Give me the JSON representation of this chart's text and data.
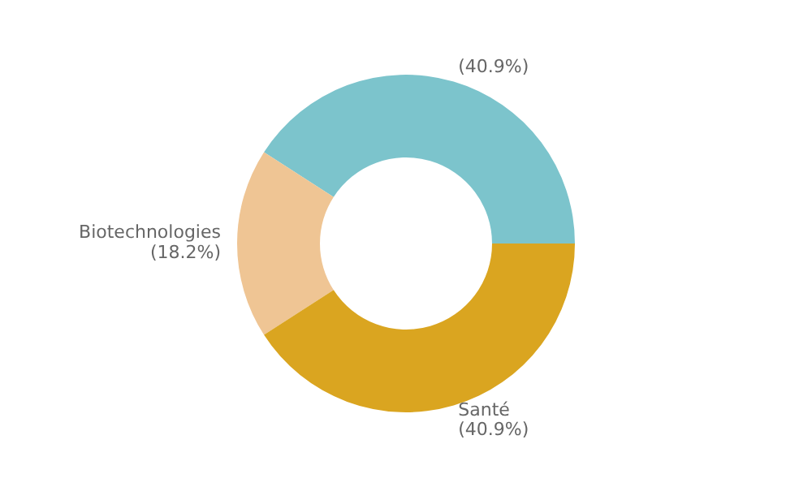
{
  "chart_data": {
    "type": "donut",
    "categories": [
      null,
      "Biotechnologies",
      "Santé"
    ],
    "values": [
      40.9,
      18.2,
      40.9
    ],
    "colors": [
      "#7cc4cc",
      "#efc594",
      "#daa520"
    ],
    "value_labels": [
      "(40.9%)",
      "(18.2%)",
      "(40.9%)"
    ],
    "legend": false
  }
}
